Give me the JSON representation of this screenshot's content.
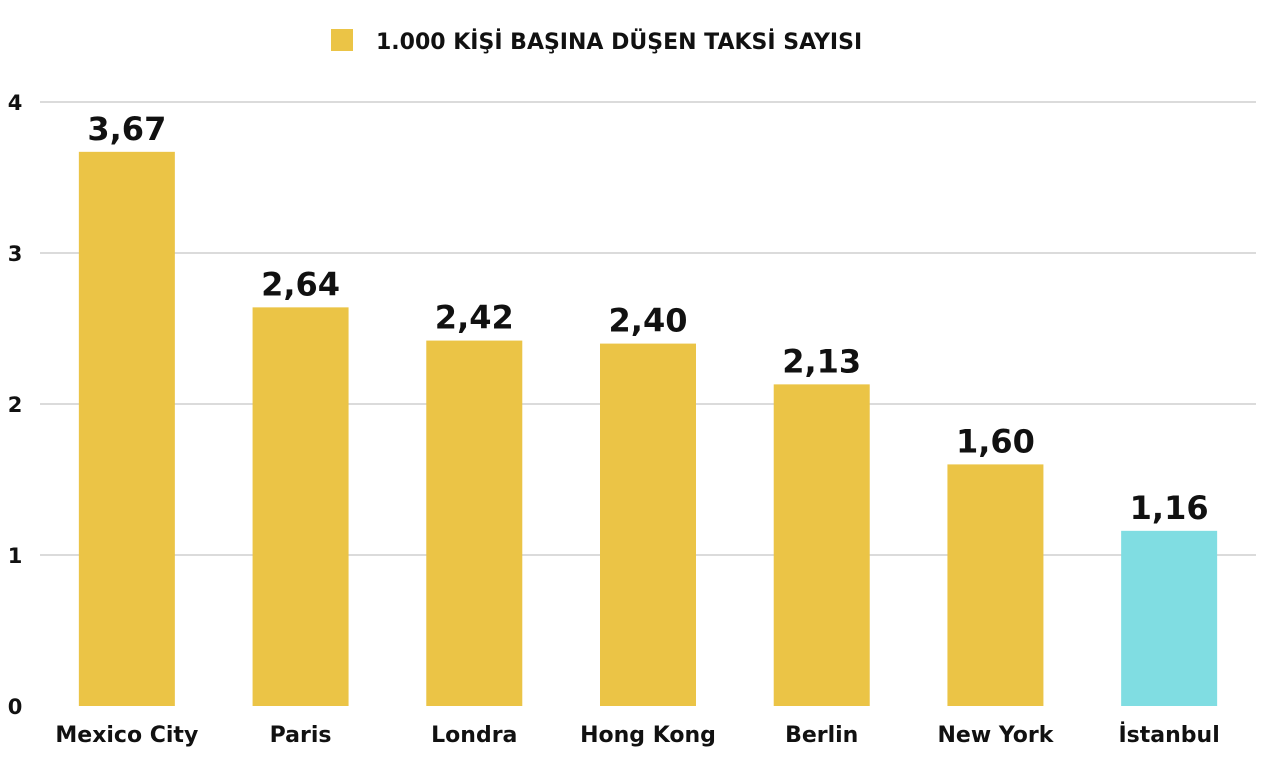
{
  "colors": {
    "bar": "#ebc446",
    "highlight": "#80dde2",
    "grid": "#cfcfcf",
    "text": "#111111"
  },
  "chart_data": {
    "type": "bar",
    "legend": {
      "position": "top-center",
      "entries": [
        {
          "label": "1.000 KİŞİ BAŞINA DÜŞEN TAKSİ SAYISI",
          "color": "#ebc446"
        }
      ]
    },
    "categories": [
      "Mexico City",
      "Paris",
      "Londra",
      "Hong Kong",
      "Berlin",
      "New York",
      "İstanbul"
    ],
    "series": [
      {
        "name": "1.000 KİŞİ BAŞINA DÜŞEN TAKSİ SAYISI",
        "values": [
          3.67,
          2.64,
          2.42,
          2.4,
          2.13,
          1.6,
          1.16
        ],
        "data_labels": [
          "3,67",
          "2,64",
          "2,42",
          "2,40",
          "2,13",
          "1,60",
          "1,16"
        ]
      }
    ],
    "highlight_index": 6,
    "ylim": [
      0,
      4
    ],
    "yticks": [
      0,
      1,
      2,
      3,
      4
    ],
    "ytick_labels": [
      "0",
      "1",
      "2",
      "3",
      "4"
    ],
    "grid": true
  }
}
